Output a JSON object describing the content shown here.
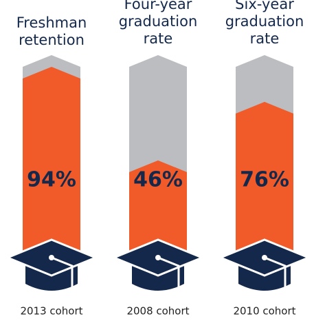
{
  "chart_data": {
    "type": "bar",
    "categories": [
      [
        "Freshman",
        "retention"
      ],
      [
        "Four-year",
        "graduation",
        "rate"
      ],
      [
        "Six-year",
        "graduation",
        "rate"
      ]
    ],
    "values": [
      94,
      46,
      76
    ],
    "value_labels": [
      "94%",
      "46%",
      "76%"
    ],
    "cohorts": [
      "2013 cohort",
      "2008 cohort",
      "2010 cohort"
    ],
    "ylim": [
      0,
      100
    ],
    "color": "#f15a29",
    "background_color": "#bcbdc0"
  }
}
